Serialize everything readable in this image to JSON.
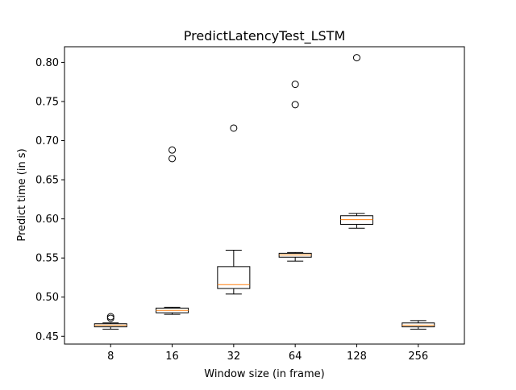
{
  "chart_data": {
    "type": "box",
    "title": "PredictLatencyTest_LSTM",
    "xlabel": "Window size (in frame)",
    "ylabel": "Predict time (in s)",
    "ylim": [
      0.44,
      0.82
    ],
    "yticks": [
      "0.45",
      "0.50",
      "0.55",
      "0.60",
      "0.65",
      "0.70",
      "0.75",
      "0.80"
    ],
    "categories": [
      "8",
      "16",
      "32",
      "64",
      "128",
      "256"
    ],
    "boxes": [
      {
        "category": "8",
        "whisker_low": 0.459,
        "q1": 0.462,
        "median": 0.464,
        "q3": 0.466,
        "whisker_high": 0.467,
        "outliers": [
          0.473,
          0.475
        ]
      },
      {
        "category": "16",
        "whisker_low": 0.478,
        "q1": 0.48,
        "median": 0.483,
        "q3": 0.486,
        "whisker_high": 0.487,
        "outliers": [
          0.677,
          0.688
        ]
      },
      {
        "category": "32",
        "whisker_low": 0.504,
        "q1": 0.511,
        "median": 0.516,
        "q3": 0.539,
        "whisker_high": 0.56,
        "outliers": [
          0.716
        ]
      },
      {
        "category": "64",
        "whisker_low": 0.546,
        "q1": 0.551,
        "median": 0.554,
        "q3": 0.556,
        "whisker_high": 0.557,
        "outliers": [
          0.746,
          0.772
        ]
      },
      {
        "category": "128",
        "whisker_low": 0.588,
        "q1": 0.593,
        "median": 0.599,
        "q3": 0.604,
        "whisker_high": 0.607,
        "outliers": [
          0.806
        ]
      },
      {
        "category": "256",
        "whisker_low": 0.459,
        "q1": 0.462,
        "median": 0.464,
        "q3": 0.467,
        "whisker_high": 0.47,
        "outliers": []
      }
    ],
    "grid": false,
    "colors": {
      "box": "#000000",
      "median": "#ff7f0e",
      "outlier": "#000000"
    }
  }
}
